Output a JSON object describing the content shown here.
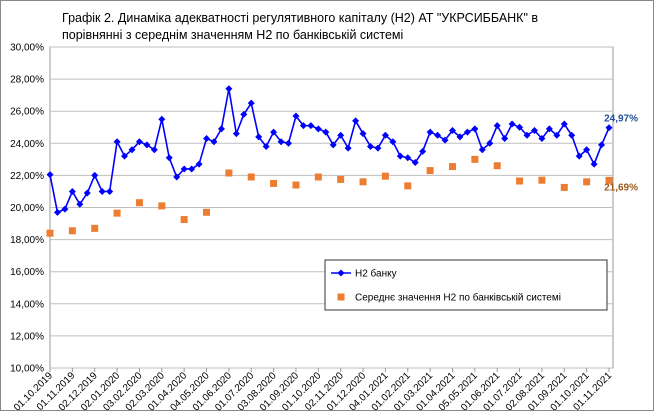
{
  "chart_data": {
    "type": "line",
    "title": [
      "Графік 2. Динаміка адекватності регулятивного капіталу (Н2) АТ \"УКРСИББАНК\" в",
      "порівнянні з середнім значенням Н2 по банківській системі"
    ],
    "categories": [
      "01.10.2019",
      null,
      null,
      "01.11.2019",
      null,
      null,
      "02.12.2019",
      null,
      null,
      "02.01.2020",
      null,
      null,
      "03.02.2020",
      null,
      null,
      "02.03.2020",
      null,
      null,
      "01.04.2020",
      null,
      null,
      "04.05.2020",
      null,
      null,
      "01.06.2020",
      null,
      null,
      "01.07.2020",
      null,
      null,
      "03.08.2020",
      null,
      null,
      "01.09.2020",
      null,
      null,
      "01.10.2020",
      null,
      null,
      "02.11.2020",
      null,
      null,
      "01.12.2020",
      null,
      null,
      "04.01.2021",
      null,
      null,
      "01.02.2021",
      null,
      null,
      "01.03.2021",
      null,
      null,
      "01.04.2021",
      null,
      null,
      "05.05.2021",
      null,
      null,
      "01.06.2021",
      null,
      null,
      "01.07.2021",
      null,
      null,
      "02.08.2021",
      null,
      null,
      "01.09.2021",
      null,
      null,
      "01.10.2021",
      null,
      null,
      "01.11.2021"
    ],
    "series": [
      {
        "name": "Н2 банку",
        "color": "#0000ff",
        "marker": "diamond",
        "values": [
          22.05,
          19.7,
          19.9,
          21.0,
          20.2,
          20.9,
          22.0,
          21.0,
          21.0,
          24.1,
          23.2,
          23.6,
          24.1,
          23.9,
          23.6,
          25.5,
          23.1,
          21.9,
          22.4,
          22.4,
          22.7,
          24.3,
          24.1,
          24.9,
          27.4,
          24.6,
          25.8,
          26.5,
          24.4,
          23.8,
          24.7,
          24.1,
          24.0,
          25.7,
          25.1,
          25.1,
          24.9,
          24.7,
          23.9,
          24.5,
          23.7,
          25.4,
          24.6,
          23.8,
          23.7,
          24.5,
          24.1,
          23.2,
          23.1,
          22.8,
          23.5,
          24.7,
          24.5,
          24.2,
          24.8,
          24.4,
          24.7,
          24.9,
          23.6,
          24.0,
          25.1,
          24.3,
          25.2,
          25.0,
          24.5,
          24.8,
          24.3,
          24.9,
          24.5,
          25.2,
          24.5,
          23.2,
          23.6,
          22.7,
          23.9,
          24.97
        ],
        "value_labels": [
          null,
          null,
          null,
          null,
          null,
          null,
          null,
          null,
          null,
          null,
          null,
          null,
          null,
          null,
          null,
          null,
          null,
          null,
          null,
          null,
          null,
          null,
          null,
          null,
          null,
          null,
          null,
          null,
          null,
          null,
          null,
          null,
          null,
          null,
          null,
          null,
          null,
          null,
          null,
          null,
          null,
          null,
          null,
          null,
          null,
          null,
          null,
          null,
          null,
          null,
          null,
          null,
          null,
          null,
          null,
          null,
          null,
          null,
          null,
          null,
          null,
          null,
          null,
          null,
          null,
          null,
          null,
          null,
          null,
          null,
          null,
          null,
          null,
          null,
          null,
          "24,97%"
        ]
      },
      {
        "name": "Середнє значення Н2 по банківській системі",
        "color": "#ed7d31",
        "marker": "square",
        "line": false,
        "values": [
          18.4,
          null,
          null,
          18.55,
          null,
          null,
          18.7,
          null,
          null,
          19.65,
          null,
          null,
          20.3,
          null,
          null,
          20.1,
          null,
          null,
          19.25,
          null,
          null,
          19.7,
          null,
          null,
          22.15,
          null,
          null,
          21.9,
          null,
          null,
          21.5,
          null,
          null,
          21.4,
          null,
          null,
          21.9,
          null,
          null,
          21.75,
          null,
          null,
          21.6,
          null,
          null,
          21.95,
          null,
          null,
          21.35,
          null,
          null,
          22.3,
          null,
          null,
          22.55,
          null,
          null,
          23.0,
          null,
          null,
          22.6,
          null,
          null,
          21.65,
          null,
          null,
          21.7,
          null,
          null,
          21.25,
          null,
          null,
          21.6,
          null,
          null,
          21.69
        ],
        "value_labels": [
          null,
          null,
          null,
          null,
          null,
          null,
          null,
          null,
          null,
          null,
          null,
          null,
          null,
          null,
          null,
          null,
          null,
          null,
          null,
          null,
          null,
          null,
          null,
          null,
          null,
          null,
          null,
          null,
          null,
          null,
          null,
          null,
          null,
          null,
          null,
          null,
          null,
          null,
          null,
          null,
          null,
          null,
          null,
          null,
          null,
          null,
          null,
          null,
          null,
          null,
          null,
          null,
          null,
          null,
          null,
          null,
          null,
          null,
          null,
          null,
          null,
          null,
          null,
          null,
          null,
          null,
          null,
          null,
          null,
          null,
          null,
          null,
          null,
          null,
          null,
          "21,69%"
        ]
      }
    ],
    "ylim": [
      10,
      30
    ],
    "yticks": [
      {
        "value": 10,
        "label": "10,00%"
      },
      {
        "value": 12,
        "label": "12,00%"
      },
      {
        "value": 14,
        "label": "14,00%"
      },
      {
        "value": 16,
        "label": "16,00%"
      },
      {
        "value": 18,
        "label": "18,00%"
      },
      {
        "value": 20,
        "label": "20,00%"
      },
      {
        "value": 22,
        "label": "22,00%"
      },
      {
        "value": 24,
        "label": "24,00%"
      },
      {
        "value": 26,
        "label": "26,00%"
      },
      {
        "value": 28,
        "label": "28,00%"
      },
      {
        "value": 30,
        "label": "30,00%"
      }
    ],
    "grid": true,
    "legend": "right"
  }
}
